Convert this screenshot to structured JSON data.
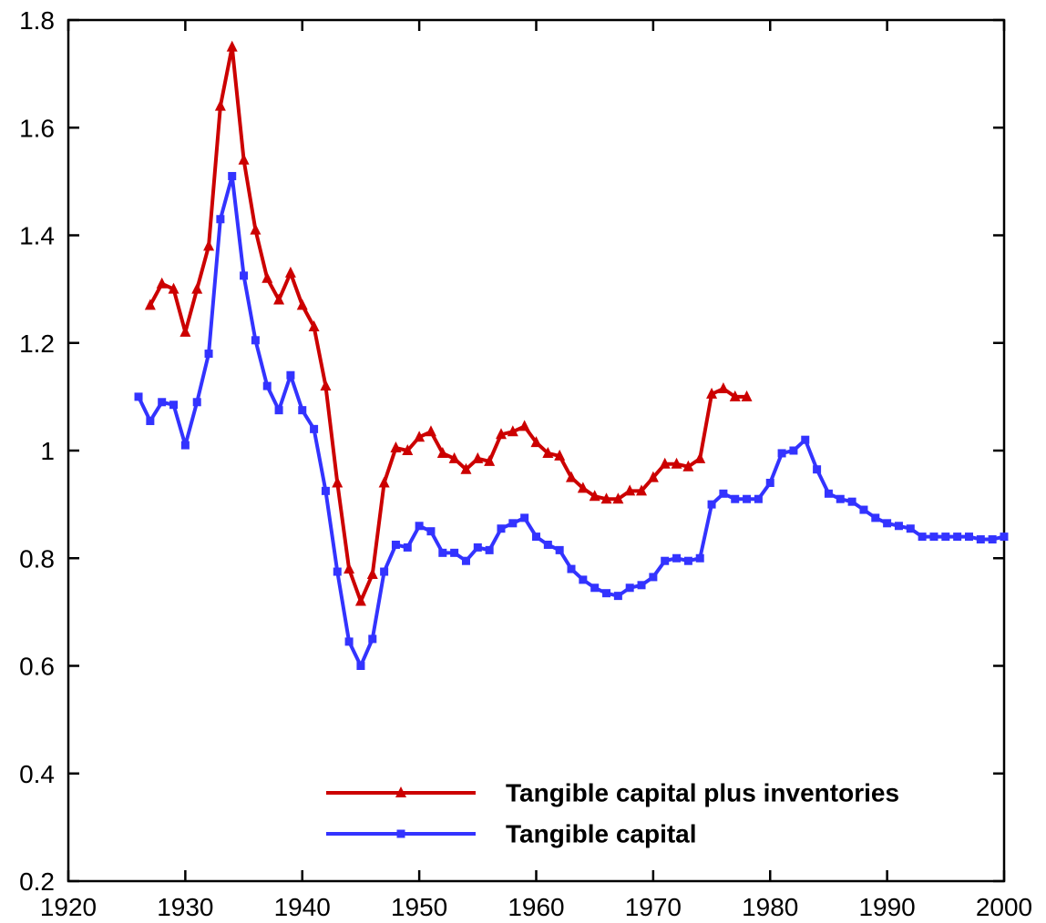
{
  "chart_data": {
    "type": "line",
    "legend": "lower right",
    "xlim": [
      1920,
      2000
    ],
    "xticks": [
      1920,
      1930,
      1940,
      1950,
      1960,
      1970,
      1980,
      1990,
      2000
    ],
    "ylim": [
      0.2,
      1.8
    ],
    "yticks": [
      0.2,
      0.4,
      0.6,
      0.8,
      1,
      1.2,
      1.4,
      1.6,
      1.8
    ],
    "series": [
      {
        "name": "Tangible capital plus inventories",
        "color": "#cc0000",
        "marker": "triangle",
        "x": [
          1927,
          1928,
          1929,
          1930,
          1931,
          1932,
          1933,
          1934,
          1935,
          1936,
          1937,
          1938,
          1939,
          1940,
          1941,
          1942,
          1943,
          1944,
          1945,
          1946,
          1947,
          1948,
          1949,
          1950,
          1951,
          1952,
          1953,
          1954,
          1955,
          1956,
          1957,
          1958,
          1959,
          1960,
          1961,
          1962,
          1963,
          1964,
          1965,
          1966,
          1967,
          1968,
          1969,
          1970,
          1971,
          1972,
          1973,
          1974,
          1975,
          1976,
          1977,
          1978
        ],
        "values": [
          1.27,
          1.31,
          1.3,
          1.22,
          1.3,
          1.38,
          1.64,
          1.75,
          1.54,
          1.41,
          1.32,
          1.28,
          1.33,
          1.27,
          1.23,
          1.12,
          0.94,
          0.78,
          0.72,
          0.77,
          0.94,
          1.005,
          1,
          1.025,
          1.035,
          0.995,
          0.985,
          0.965,
          0.985,
          0.98,
          1.03,
          1.035,
          1.045,
          1.015,
          0.995,
          0.99,
          0.95,
          0.93,
          0.915,
          0.91,
          0.91,
          0.925,
          0.925,
          0.95,
          0.975,
          0.975,
          0.97,
          0.985,
          1.105,
          1.115,
          1.1,
          1.1
        ]
      },
      {
        "name": "Tangible capital",
        "color": "#3333ff",
        "marker": "square",
        "x": [
          1926,
          1927,
          1928,
          1929,
          1930,
          1931,
          1932,
          1933,
          1934,
          1935,
          1936,
          1937,
          1938,
          1939,
          1940,
          1941,
          1942,
          1943,
          1944,
          1945,
          1946,
          1947,
          1948,
          1949,
          1950,
          1951,
          1952,
          1953,
          1954,
          1955,
          1956,
          1957,
          1958,
          1959,
          1960,
          1961,
          1962,
          1963,
          1964,
          1965,
          1966,
          1967,
          1968,
          1969,
          1970,
          1971,
          1972,
          1973,
          1974,
          1975,
          1976,
          1977,
          1978,
          1979,
          1980,
          1981,
          1982,
          1983,
          1984,
          1985,
          1986,
          1987,
          1988,
          1989,
          1990,
          1991,
          1992,
          1993,
          1994,
          1995,
          1996,
          1997,
          1998,
          1999,
          2000
        ],
        "values": [
          1.1,
          1.055,
          1.09,
          1.085,
          1.01,
          1.09,
          1.18,
          1.43,
          1.51,
          1.325,
          1.205,
          1.12,
          1.075,
          1.14,
          1.075,
          1.04,
          0.925,
          0.775,
          0.645,
          0.6,
          0.65,
          0.775,
          0.825,
          0.82,
          0.86,
          0.85,
          0.81,
          0.81,
          0.795,
          0.82,
          0.815,
          0.855,
          0.865,
          0.875,
          0.84,
          0.825,
          0.815,
          0.78,
          0.76,
          0.745,
          0.735,
          0.73,
          0.745,
          0.75,
          0.765,
          0.795,
          0.8,
          0.795,
          0.8,
          0.9,
          0.92,
          0.91,
          0.91,
          0.91,
          0.94,
          0.995,
          1,
          1.02,
          0.965,
          0.92,
          0.91,
          0.905,
          0.89,
          0.875,
          0.865,
          0.86,
          0.855,
          0.84,
          0.84,
          0.84,
          0.84,
          0.84,
          0.835,
          0.835,
          0.84
        ]
      }
    ]
  }
}
